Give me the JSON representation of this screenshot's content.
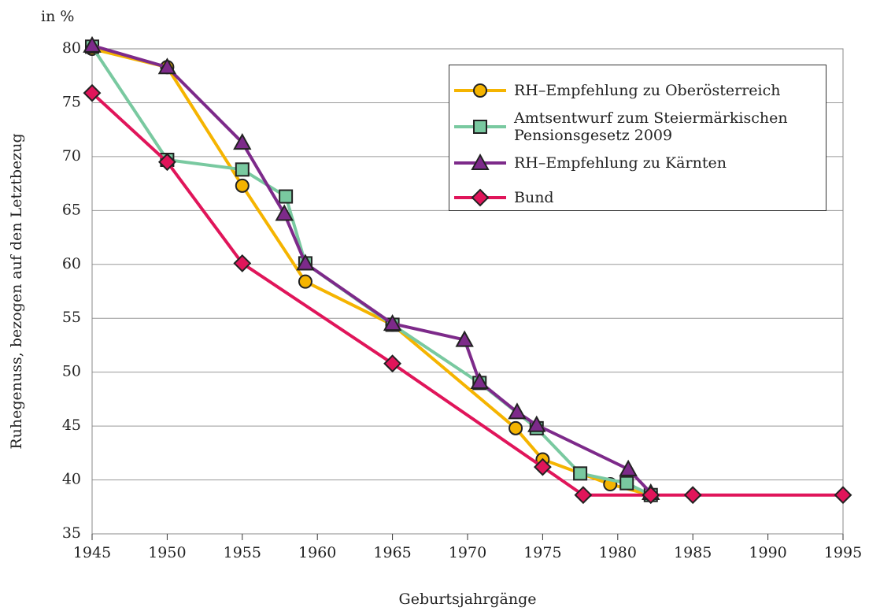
{
  "chart_data": {
    "type": "line",
    "title": "in %",
    "x_label": "Geburtsjahrgänge",
    "y_label": "Ruhegenuss, bezogen auf den Letztbezug",
    "xlim": [
      1945,
      1995
    ],
    "xticks": [
      1945,
      1950,
      1955,
      1960,
      1965,
      1970,
      1975,
      1980,
      1985,
      1990,
      1995
    ],
    "ylim": [
      35,
      80
    ],
    "yticks": [
      35,
      40,
      45,
      50,
      55,
      60,
      65,
      70,
      75,
      80
    ],
    "grid": true,
    "legend": "upper right",
    "series": [
      {
        "name": "RH–Empfehlung zu Oberösterreich",
        "color": "#f5b400",
        "marker": "circle",
        "x": [
          1945,
          1950,
          1955,
          1959.2,
          1965,
          1973.2,
          1975,
          1979.5,
          1982.2
        ],
        "values": [
          80.0,
          78.3,
          67.3,
          58.4,
          54.4,
          44.8,
          41.9,
          39.6,
          38.6
        ]
      },
      {
        "name": "Amtsentwurf zum Steiermärkischen Pensionsgesetz 2009",
        "color": "#79c9a0",
        "marker": "square",
        "x": [
          1945,
          1950,
          1955,
          1957.9,
          1959.2,
          1965,
          1970.8,
          1974.6,
          1977.5,
          1980.6,
          1982.2
        ],
        "values": [
          80.2,
          69.7,
          68.8,
          66.3,
          60.1,
          54.4,
          49.0,
          44.8,
          40.6,
          39.7,
          38.6
        ]
      },
      {
        "name": "RH–Empfehlung zu Kärnten",
        "color": "#7d2a8a",
        "marker": "triangle",
        "x": [
          1945,
          1950,
          1955,
          1957.8,
          1959.2,
          1965,
          1969.8,
          1970.8,
          1973.3,
          1974.6,
          1980.7,
          1982.2
        ],
        "values": [
          80.3,
          78.3,
          71.3,
          64.7,
          60.1,
          54.5,
          53.0,
          49.1,
          46.3,
          45.1,
          41.0,
          38.8
        ]
      },
      {
        "name": "Bund",
        "color": "#e0155a",
        "marker": "diamond",
        "x": [
          1945,
          1950,
          1955,
          1965,
          1975,
          1977.7,
          1982.2,
          1985,
          1995
        ],
        "values": [
          75.9,
          69.5,
          60.1,
          50.8,
          41.2,
          38.6,
          38.6,
          38.6,
          38.6
        ]
      }
    ]
  }
}
